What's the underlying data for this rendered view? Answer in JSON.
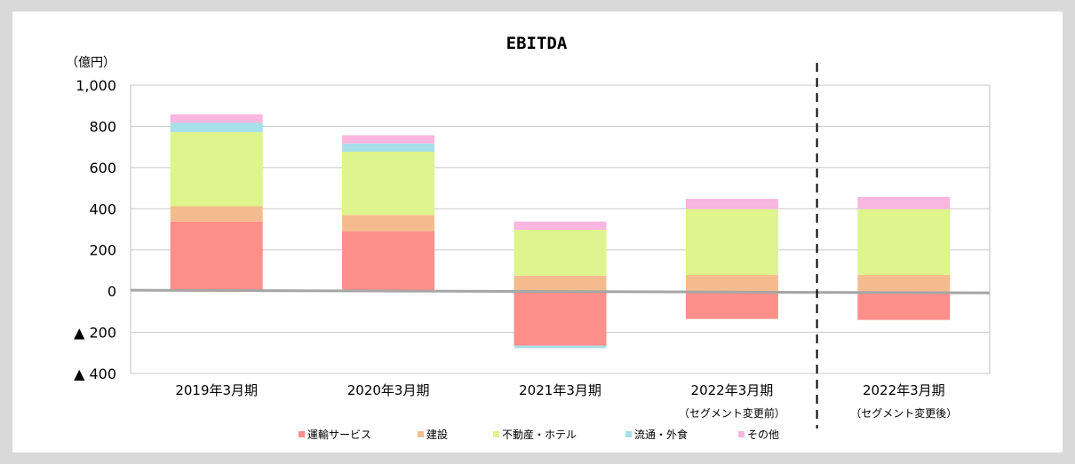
{
  "chart_data": {
    "type": "bar",
    "stacked": true,
    "title": "EBITDA",
    "unit_label": "（億円）",
    "ylim": [
      -400,
      1000
    ],
    "yticks": [
      {
        "value": 1000,
        "label": "1,000"
      },
      {
        "value": 800,
        "label": "800"
      },
      {
        "value": 600,
        "label": "600"
      },
      {
        "value": 400,
        "label": "400"
      },
      {
        "value": 200,
        "label": "200"
      },
      {
        "value": 0,
        "label": "0"
      },
      {
        "value": -200,
        "label": "▲ 200"
      },
      {
        "value": -400,
        "label": "▲ 400"
      }
    ],
    "grid": true,
    "legend_position": "bottom",
    "categories": [
      "2019年3月期",
      "2020年3月期",
      "2021年3月期",
      "2022年3月期",
      "2022年3月期"
    ],
    "category_sublabels": [
      "",
      "",
      "",
      "（セグメント変更前）",
      "（セグメント変更後）"
    ],
    "divider_after_index": 3,
    "series": [
      {
        "name": "運輸サービス",
        "color": "#ff8f8a",
        "values": [
          337,
          291,
          -265,
          -135,
          -140
        ]
      },
      {
        "name": "建設",
        "color": "#f4bc8e",
        "values": [
          75,
          79,
          75,
          78,
          78
        ]
      },
      {
        "name": "不動産・ホテル",
        "color": "#def48c",
        "values": [
          360,
          307,
          223,
          320,
          320
        ]
      },
      {
        "name": "流通・外食",
        "color": "#a7e0ea",
        "values": [
          45,
          40,
          -12,
          0,
          0
        ]
      },
      {
        "name": "その他",
        "color": "#f9b6de",
        "values": [
          41,
          40,
          40,
          50,
          60
        ]
      }
    ]
  }
}
